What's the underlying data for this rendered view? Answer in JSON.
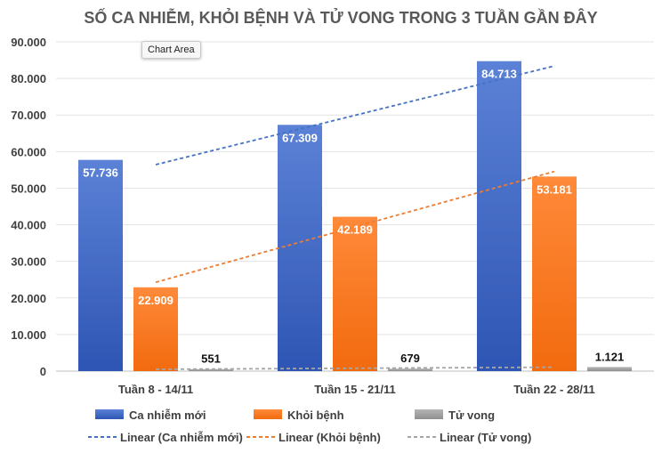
{
  "tooltip": "Chart Area",
  "chart_data": {
    "type": "bar",
    "title": "SỐ CA NHIỄM, KHỎI BỆNH VÀ TỬ VONG TRONG 3 TUẦN GẦN ĐÂY",
    "categories": [
      "Tuần 8 - 14/11",
      "Tuần 15 - 21/11",
      "Tuần 22 - 28/11"
    ],
    "series": [
      {
        "name": "Ca nhiễm mới",
        "values": [
          57736,
          67309,
          84713
        ],
        "labels": [
          "57.736",
          "67.309",
          "84.713"
        ],
        "color": "#4472c4"
      },
      {
        "name": "Khỏi bệnh",
        "values": [
          22909,
          42189,
          53181
        ],
        "labels": [
          "22.909",
          "42.189",
          "53.181"
        ],
        "color": "#ed7d31"
      },
      {
        "name": "Tử vong",
        "values": [
          551,
          679,
          1121
        ],
        "labels": [
          "551",
          "679",
          "1.121"
        ],
        "color": "#a5a5a5"
      }
    ],
    "trendlines": [
      {
        "name": "Linear (Ca nhiễm mới)",
        "series": 0,
        "color": "#4472c4"
      },
      {
        "name": "Linear (Khỏi bệnh)",
        "series": 1,
        "color": "#ed7d31"
      },
      {
        "name": "Linear (Tử vong)",
        "series": 2,
        "color": "#a5a5a5"
      }
    ],
    "ylim": [
      0,
      90000
    ],
    "yticks": [
      0,
      10000,
      20000,
      30000,
      40000,
      50000,
      60000,
      70000,
      80000,
      90000
    ],
    "ytick_labels": [
      "0",
      "10.000",
      "20.000",
      "30.000",
      "40.000",
      "50.000",
      "60.000",
      "70.000",
      "80.000",
      "90.000"
    ],
    "grid": true,
    "legend_position": "bottom"
  }
}
